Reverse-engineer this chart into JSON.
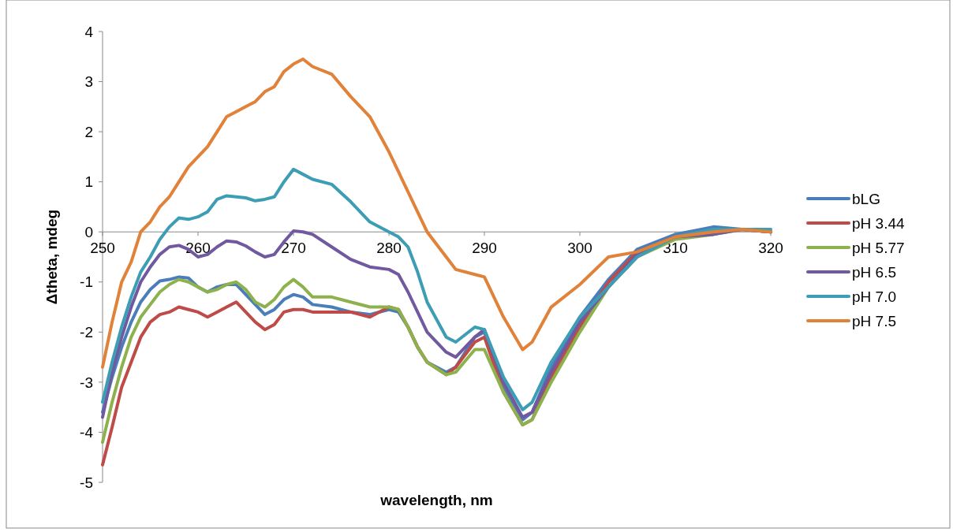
{
  "chart_data": {
    "type": "line",
    "xlabel": "wavelength, nm",
    "ylabel": "Δtheta, mdeg",
    "x": [
      250,
      251,
      252,
      253,
      254,
      255,
      256,
      257,
      258,
      259,
      260,
      261,
      262,
      263,
      264,
      265,
      266,
      267,
      268,
      269,
      270,
      271,
      272,
      274,
      276,
      278,
      280,
      281,
      282,
      283,
      284,
      286,
      287,
      289,
      290,
      292,
      294,
      295,
      297,
      300,
      303,
      306,
      310,
      314,
      317,
      320
    ],
    "series": [
      {
        "name": "bLG",
        "color": "#4a7ebb",
        "values": [
          -3.6,
          -2.9,
          -2.3,
          -1.8,
          -1.4,
          -1.15,
          -0.98,
          -0.95,
          -0.9,
          -0.92,
          -1.1,
          -1.2,
          -1.1,
          -1.05,
          -1.05,
          -1.25,
          -1.45,
          -1.65,
          -1.55,
          -1.35,
          -1.25,
          -1.3,
          -1.45,
          -1.5,
          -1.6,
          -1.65,
          -1.55,
          -1.6,
          -1.9,
          -2.3,
          -2.6,
          -2.8,
          -2.7,
          -2.1,
          -2.0,
          -3.1,
          -3.75,
          -3.6,
          -2.7,
          -1.7,
          -0.95,
          -0.35,
          -0.05,
          0.1,
          0.05,
          0.0
        ]
      },
      {
        "name": "pH 3.44",
        "color": "#be4b48",
        "values": [
          -4.65,
          -3.9,
          -3.1,
          -2.6,
          -2.1,
          -1.8,
          -1.65,
          -1.6,
          -1.5,
          -1.55,
          -1.6,
          -1.7,
          -1.6,
          -1.5,
          -1.4,
          -1.6,
          -1.8,
          -1.95,
          -1.85,
          -1.6,
          -1.55,
          -1.55,
          -1.6,
          -1.6,
          -1.6,
          -1.7,
          -1.5,
          -1.55,
          -1.9,
          -2.3,
          -2.6,
          -2.85,
          -2.7,
          -2.2,
          -2.1,
          -3.2,
          -3.85,
          -3.75,
          -2.9,
          -1.9,
          -1.0,
          -0.4,
          -0.1,
          0.0,
          0.05,
          0.0
        ]
      },
      {
        "name": "pH 5.77",
        "color": "#8db14c",
        "values": [
          -4.2,
          -3.4,
          -2.7,
          -2.1,
          -1.7,
          -1.45,
          -1.2,
          -1.05,
          -0.95,
          -1.0,
          -1.1,
          -1.2,
          -1.15,
          -1.05,
          -1.0,
          -1.15,
          -1.4,
          -1.5,
          -1.35,
          -1.1,
          -0.95,
          -1.1,
          -1.3,
          -1.3,
          -1.4,
          -1.5,
          -1.5,
          -1.55,
          -1.9,
          -2.3,
          -2.6,
          -2.85,
          -2.8,
          -2.35,
          -2.35,
          -3.2,
          -3.85,
          -3.75,
          -3.0,
          -2.0,
          -1.1,
          -0.5,
          -0.15,
          -0.05,
          0.05,
          0.0
        ]
      },
      {
        "name": "pH 6.5",
        "color": "#7159a0",
        "values": [
          -3.7,
          -2.8,
          -2.1,
          -1.5,
          -1.0,
          -0.7,
          -0.45,
          -0.3,
          -0.27,
          -0.35,
          -0.5,
          -0.45,
          -0.3,
          -0.18,
          -0.2,
          -0.28,
          -0.4,
          -0.5,
          -0.45,
          -0.2,
          0.02,
          0.0,
          -0.05,
          -0.3,
          -0.55,
          -0.7,
          -0.75,
          -0.85,
          -1.2,
          -1.6,
          -2.0,
          -2.4,
          -2.5,
          -2.1,
          -1.95,
          -3.0,
          -3.7,
          -3.6,
          -2.8,
          -1.8,
          -1.1,
          -0.45,
          -0.1,
          -0.05,
          0.05,
          0.0
        ]
      },
      {
        "name": "pH 7.0",
        "color": "#3d9db5",
        "values": [
          -3.4,
          -2.6,
          -1.9,
          -1.3,
          -0.8,
          -0.5,
          -0.15,
          0.1,
          0.28,
          0.25,
          0.3,
          0.4,
          0.65,
          0.72,
          0.7,
          0.68,
          0.62,
          0.65,
          0.7,
          1.0,
          1.25,
          1.15,
          1.05,
          0.95,
          0.6,
          0.2,
          0.0,
          -0.1,
          -0.3,
          -0.8,
          -1.4,
          -2.1,
          -2.2,
          -1.9,
          -1.95,
          -2.9,
          -3.55,
          -3.4,
          -2.6,
          -1.7,
          -1.1,
          -0.5,
          -0.1,
          0.05,
          0.05,
          0.05
        ]
      },
      {
        "name": "pH 7.5",
        "color": "#e0823a",
        "values": [
          -2.7,
          -1.8,
          -1.0,
          -0.6,
          0.0,
          0.2,
          0.5,
          0.7,
          1.0,
          1.3,
          1.5,
          1.7,
          2.0,
          2.3,
          2.4,
          2.5,
          2.6,
          2.8,
          2.9,
          3.2,
          3.35,
          3.45,
          3.3,
          3.15,
          2.7,
          2.3,
          1.6,
          1.2,
          0.8,
          0.4,
          0.0,
          -0.5,
          -0.75,
          -0.85,
          -0.9,
          -1.7,
          -2.35,
          -2.2,
          -1.5,
          -1.05,
          -0.5,
          -0.4,
          -0.1,
          0.0,
          0.05,
          0.0
        ]
      }
    ],
    "xlim": [
      250,
      320
    ],
    "xticks": [
      250,
      260,
      270,
      280,
      290,
      300,
      310,
      320
    ],
    "ylim": [
      -5,
      4
    ],
    "yticks": [
      -5,
      -4,
      -3,
      -2,
      -1,
      0,
      1,
      2,
      3,
      4
    ],
    "grid": false,
    "legend": "right",
    "marker": "none",
    "line_style": "solid"
  }
}
